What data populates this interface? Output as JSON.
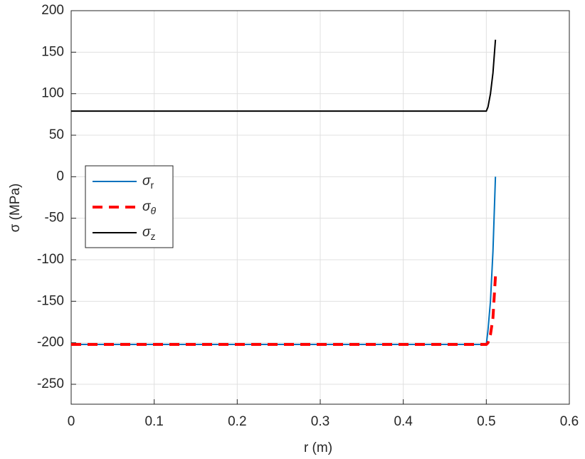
{
  "chart_data": {
    "type": "line",
    "xlabel": "r (m)",
    "ylabel": "σ (MPa)",
    "x": [
      0,
      0.1,
      0.2,
      0.3,
      0.4,
      0.5,
      0.502,
      0.505,
      0.508,
      0.511
    ],
    "series": [
      {
        "name": "σr",
        "color": "#0072bd",
        "dash": false,
        "values": [
          -202,
          -202,
          -202,
          -202,
          -202,
          -202,
          -185,
          -150,
          -90,
          0
        ]
      },
      {
        "name": "σθ",
        "color": "#ff0000",
        "dash": true,
        "values": [
          -202,
          -202,
          -202,
          -202,
          -202,
          -202,
          -200,
          -190,
          -170,
          -120
        ]
      },
      {
        "name": "σz",
        "color": "#000000",
        "dash": false,
        "values": [
          79,
          79,
          79,
          79,
          79,
          79,
          84,
          100,
          125,
          165
        ]
      }
    ],
    "xlim": [
      0,
      0.6
    ],
    "xticks": [
      0,
      0.1,
      0.2,
      0.3,
      0.4,
      0.5,
      0.6
    ],
    "ylim": [
      -274,
      200
    ],
    "yticks": [
      -250,
      -200,
      -150,
      -100,
      -50,
      0,
      50,
      100,
      150,
      200
    ],
    "grid": true,
    "legend": "left"
  }
}
